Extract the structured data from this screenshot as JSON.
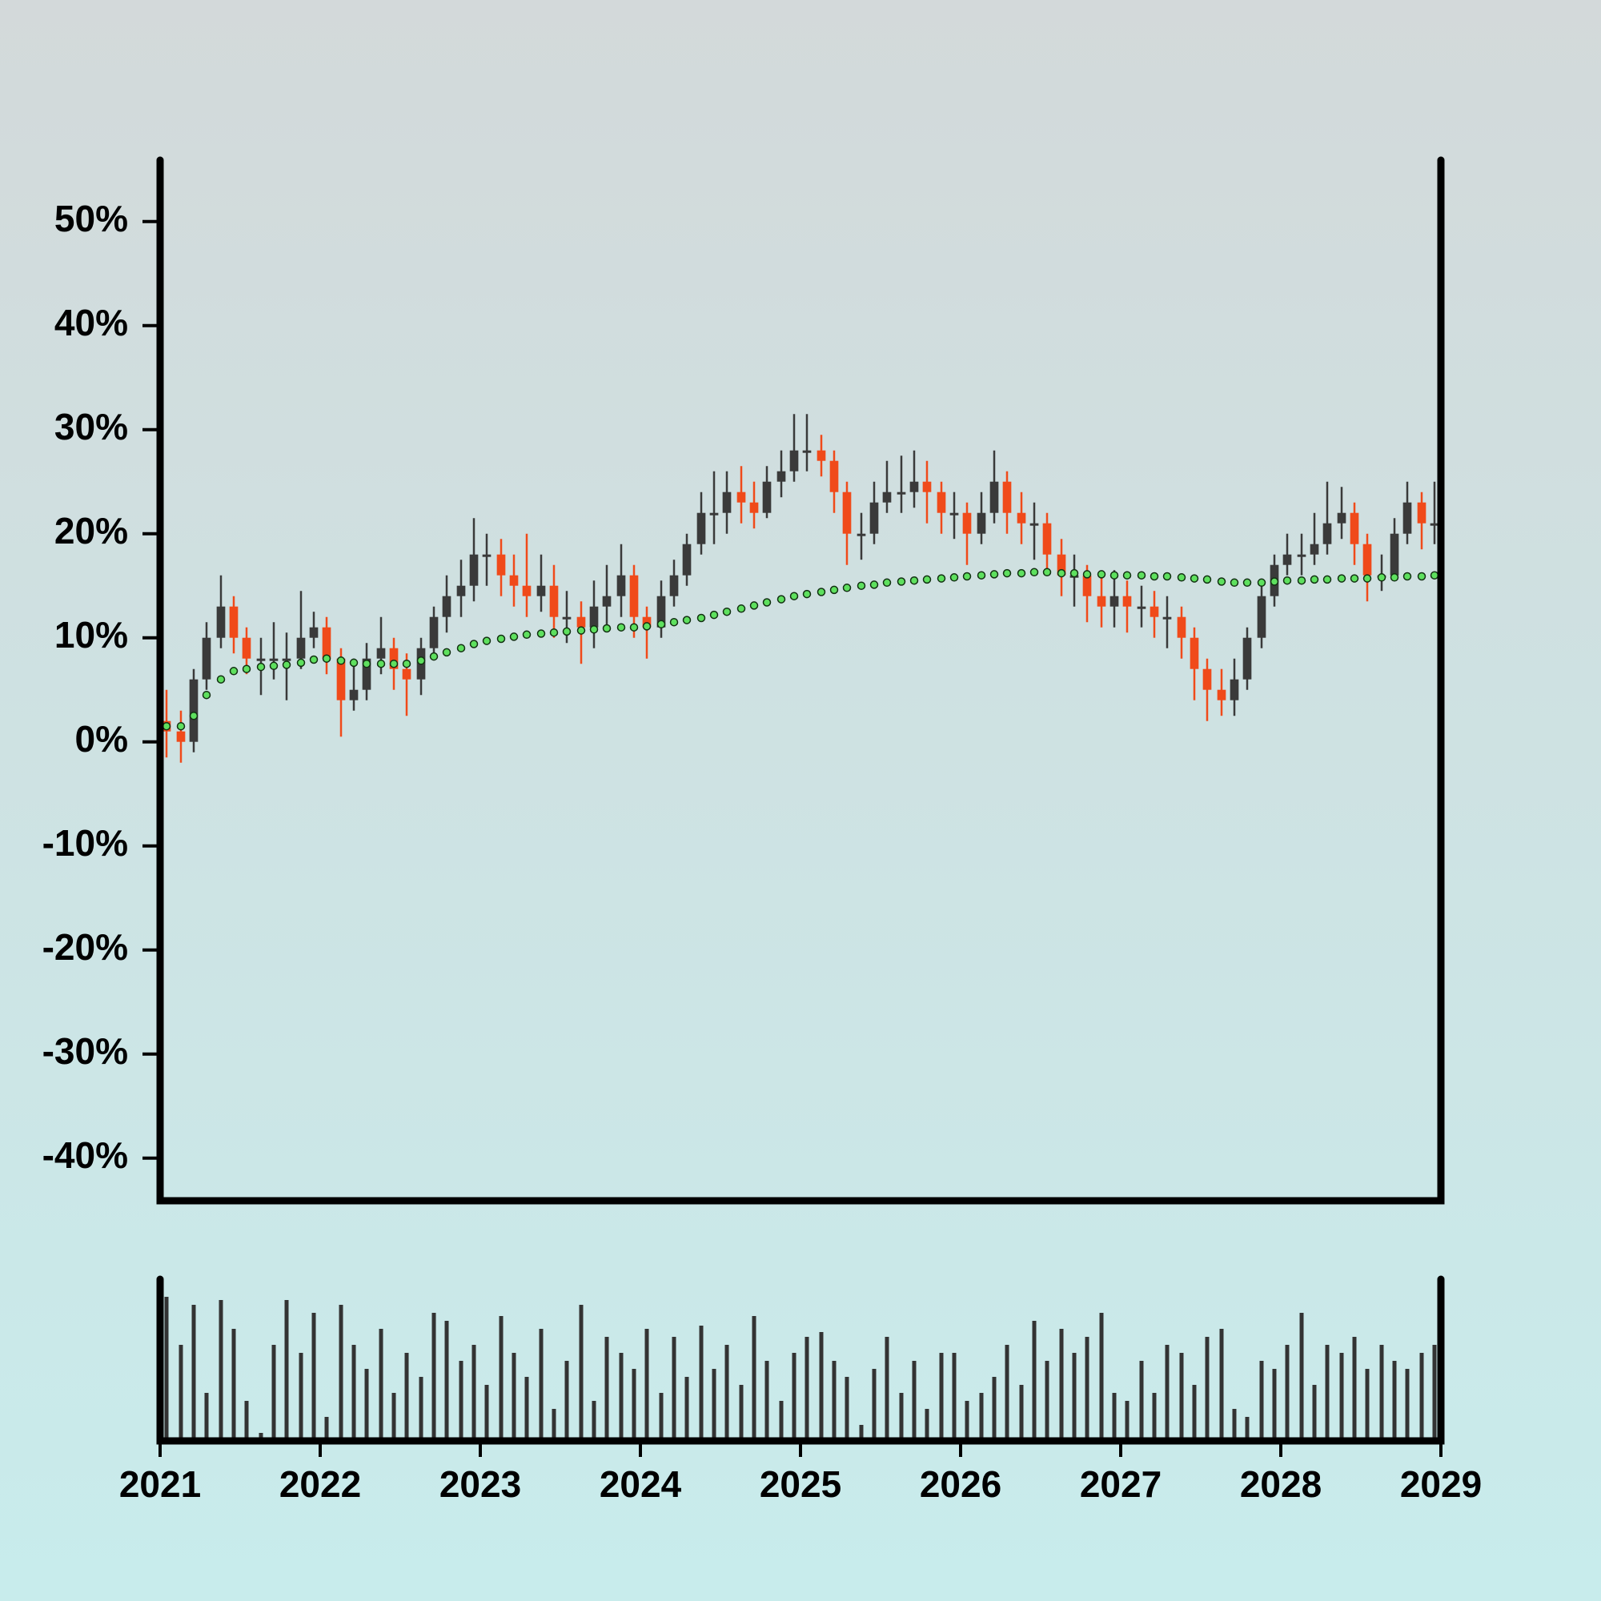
{
  "chart_data": {
    "type": "candlestick",
    "x": [
      2021.04,
      2021.13,
      2021.21,
      2021.29,
      2021.38,
      2021.46,
      2021.54,
      2021.63,
      2021.71,
      2021.79,
      2021.88,
      2021.96,
      2022.04,
      2022.13,
      2022.21,
      2022.29,
      2022.38,
      2022.46,
      2022.54,
      2022.63,
      2022.71,
      2022.79,
      2022.88,
      2022.96,
      2023.04,
      2023.13,
      2023.21,
      2023.29,
      2023.38,
      2023.46,
      2023.54,
      2023.63,
      2023.71,
      2023.79,
      2023.88,
      2023.96,
      2024.04,
      2024.13,
      2024.21,
      2024.29,
      2024.38,
      2024.46,
      2024.54,
      2024.63,
      2024.71,
      2024.79,
      2024.88,
      2024.96,
      2025.04,
      2025.13,
      2025.21,
      2025.29,
      2025.38,
      2025.46,
      2025.54,
      2025.63,
      2025.71,
      2025.79,
      2025.88,
      2025.96,
      2026.04,
      2026.13,
      2026.21,
      2026.29,
      2026.38,
      2026.46,
      2026.54,
      2026.63,
      2026.71,
      2026.79,
      2026.88,
      2026.96,
      2027.04,
      2027.13,
      2027.21,
      2027.29,
      2027.38,
      2027.46,
      2027.54,
      2027.63,
      2027.71,
      2027.79,
      2027.88,
      2027.96,
      2028.04,
      2028.13,
      2028.21,
      2028.29,
      2028.38,
      2028.46,
      2028.54,
      2028.63,
      2028.71,
      2028.79,
      2028.88,
      2028.96
    ],
    "open": [
      2,
      1,
      0,
      6,
      10,
      13,
      10,
      8,
      8,
      8,
      8,
      10,
      11,
      8,
      4,
      5,
      8,
      9,
      7,
      6,
      9,
      12,
      14,
      15,
      18,
      18,
      16,
      15,
      14,
      15,
      12,
      12,
      11,
      13,
      14,
      16,
      12,
      11,
      14,
      16,
      19,
      22,
      22,
      24,
      23,
      22,
      25,
      26,
      28,
      28,
      27,
      24,
      20,
      20,
      23,
      24,
      24,
      25,
      24,
      22,
      22,
      20,
      22,
      25,
      22,
      21,
      21,
      18,
      16,
      16,
      14,
      13,
      14,
      13,
      13,
      12,
      12,
      10,
      7,
      5,
      4,
      6,
      10,
      14,
      17,
      18,
      18,
      19,
      21,
      22,
      19,
      16,
      16,
      20,
      23,
      21
    ],
    "high": [
      5,
      3,
      7,
      11.5,
      16,
      14,
      11,
      10,
      11.5,
      10.5,
      14.5,
      12.5,
      12,
      9,
      8,
      9.5,
      12,
      10,
      8.5,
      10,
      13,
      16,
      17.5,
      21.5,
      20,
      19.5,
      18,
      20,
      18,
      17,
      14.5,
      13.5,
      15.5,
      17,
      19,
      17,
      13,
      15.5,
      17.5,
      20,
      24,
      26,
      26,
      26.5,
      25,
      26.5,
      28,
      31.5,
      31.5,
      29.5,
      28,
      25,
      22,
      25,
      27,
      27.5,
      28,
      27,
      25,
      24,
      23,
      24,
      28,
      26,
      24,
      23,
      22,
      19.5,
      18,
      17,
      16,
      16.5,
      15.5,
      15,
      14.5,
      14,
      13,
      11,
      8,
      7,
      8,
      11,
      15,
      18,
      20,
      20,
      22,
      25,
      24.5,
      23,
      20,
      18,
      21.5,
      25,
      24,
      25
    ],
    "low": [
      -1.5,
      -2,
      -1,
      5,
      9,
      8.5,
      6.5,
      4.5,
      6,
      4,
      7,
      9,
      6.5,
      0.5,
      3,
      4,
      6.5,
      5,
      2.5,
      4.5,
      8,
      10.5,
      12,
      13.5,
      15,
      14,
      13,
      12,
      12.5,
      10,
      9.5,
      7.5,
      9,
      11,
      12,
      10,
      8,
      10,
      13,
      15,
      18,
      19,
      20,
      21,
      20.5,
      21.5,
      23.5,
      25,
      26,
      25.5,
      22,
      17,
      17.5,
      19,
      22,
      22,
      22.5,
      21,
      20,
      19.5,
      17,
      19,
      21,
      20,
      19,
      17.5,
      16,
      14,
      13,
      11.5,
      11,
      11,
      10.5,
      11,
      10,
      9,
      8,
      4,
      2,
      2.5,
      2.5,
      5,
      9,
      13,
      16,
      16,
      17,
      18,
      19.5,
      17,
      13.5,
      14.5,
      15.5,
      19,
      18.5,
      19
    ],
    "close": [
      1,
      0,
      6,
      10,
      13,
      10,
      8,
      8,
      8,
      8,
      10,
      11,
      8,
      4,
      5,
      8,
      9,
      7,
      6,
      9,
      12,
      14,
      15,
      18,
      18,
      16,
      15,
      14,
      15,
      12,
      12,
      11,
      13,
      14,
      16,
      12,
      11,
      14,
      16,
      19,
      22,
      22,
      24,
      23,
      22,
      25,
      26,
      28,
      28,
      27,
      24,
      20,
      20,
      23,
      24,
      24,
      25,
      24,
      22,
      22,
      20,
      22,
      25,
      22,
      21,
      21,
      18,
      16,
      16,
      14,
      13,
      14,
      13,
      13,
      12,
      12,
      10,
      7,
      5,
      4,
      6,
      10,
      14,
      17,
      18,
      18,
      19,
      21,
      22,
      19,
      16,
      16,
      20,
      23,
      21,
      21
    ],
    "up_color": "#3a3a3a",
    "down_color": "#f04a1a",
    "ma": {
      "color": "#5ee05e",
      "values": [
        1.5,
        1.5,
        2.5,
        4.5,
        6,
        6.8,
        7,
        7.2,
        7.3,
        7.4,
        7.6,
        7.9,
        8,
        7.8,
        7.6,
        7.5,
        7.5,
        7.5,
        7.5,
        7.8,
        8.2,
        8.6,
        9,
        9.4,
        9.7,
        9.9,
        10.1,
        10.3,
        10.4,
        10.5,
        10.6,
        10.7,
        10.8,
        10.9,
        11,
        11,
        11.1,
        11.3,
        11.5,
        11.7,
        11.9,
        12.2,
        12.5,
        12.8,
        13.1,
        13.4,
        13.7,
        14,
        14.2,
        14.4,
        14.6,
        14.8,
        15,
        15.1,
        15.3,
        15.4,
        15.5,
        15.6,
        15.7,
        15.8,
        15.9,
        16,
        16.1,
        16.2,
        16.2,
        16.3,
        16.3,
        16.2,
        16.2,
        16.1,
        16.1,
        16,
        16,
        16,
        15.9,
        15.9,
        15.8,
        15.7,
        15.6,
        15.4,
        15.3,
        15.3,
        15.3,
        15.4,
        15.5,
        15.5,
        15.6,
        15.6,
        15.7,
        15.7,
        15.7,
        15.8,
        15.8,
        15.9,
        15.9,
        16
      ]
    },
    "volume": {
      "color": "#333333",
      "ylim": [
        0,
        100
      ],
      "values": [
        90,
        60,
        85,
        30,
        88,
        70,
        25,
        5,
        60,
        88,
        55,
        80,
        15,
        85,
        60,
        45,
        70,
        30,
        55,
        40,
        80,
        75,
        50,
        60,
        35,
        78,
        55,
        40,
        70,
        20,
        50,
        85,
        25,
        65,
        55,
        45,
        70,
        30,
        65,
        40,
        72,
        45,
        60,
        35,
        78,
        50,
        25,
        55,
        65,
        68,
        50,
        40,
        10,
        45,
        65,
        30,
        50,
        20,
        55,
        55,
        25,
        30,
        40,
        60,
        35,
        75,
        50,
        70,
        55,
        65,
        80,
        30,
        25,
        50,
        30,
        60,
        55,
        35,
        65,
        70,
        20,
        15,
        50,
        45,
        60,
        80,
        35,
        60,
        55,
        65,
        45,
        60,
        50,
        45,
        55,
        60
      ]
    },
    "xlim": [
      2021,
      2029
    ],
    "xticks": [
      2021,
      2022,
      2023,
      2024,
      2025,
      2026,
      2027,
      2028,
      2029
    ],
    "ylim": [
      -44.1,
      55.9
    ],
    "yticks": [
      {
        "value": -40,
        "label": "-40%"
      },
      {
        "value": -30,
        "label": "-30%"
      },
      {
        "value": -20,
        "label": "-20%"
      },
      {
        "value": -10,
        "label": "-10%"
      },
      {
        "value": 0,
        "label": "0%"
      },
      {
        "value": 10,
        "label": "10%"
      },
      {
        "value": 20,
        "label": "20%"
      },
      {
        "value": 30,
        "label": "30%"
      },
      {
        "value": 40,
        "label": "40%"
      },
      {
        "value": 50,
        "label": "50%"
      }
    ]
  }
}
